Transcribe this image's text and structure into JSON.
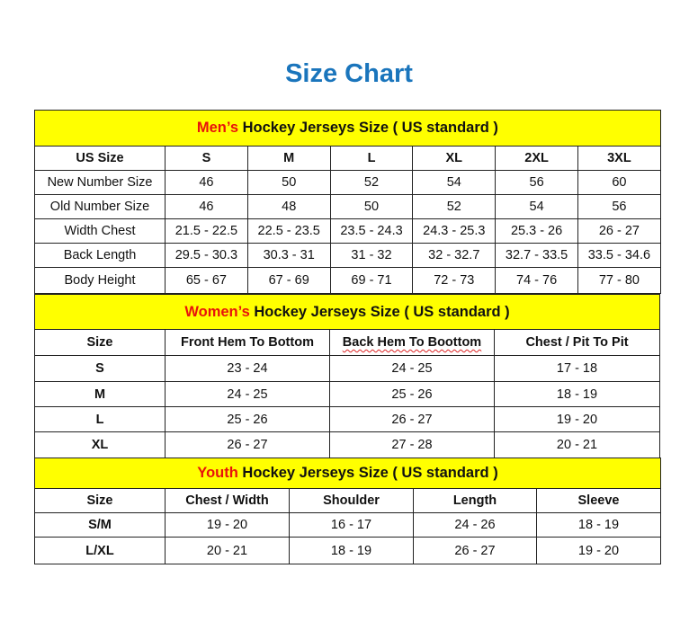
{
  "title": "Size Chart",
  "colors": {
    "title": "#1a75bc",
    "header_bg": "#ffff00",
    "highlight": "#e8120c"
  },
  "men": {
    "heading_highlight": "Men’s",
    "heading_rest": " Hockey Jerseys Size ( US standard )",
    "columns": [
      "US Size",
      "S",
      "M",
      "L",
      "XL",
      "2XL",
      "3XL"
    ],
    "rows": [
      [
        "New Number Size",
        "46",
        "50",
        "52",
        "54",
        "56",
        "60"
      ],
      [
        "Old Number Size",
        "46",
        "48",
        "50",
        "52",
        "54",
        "56"
      ],
      [
        "Width Chest",
        "21.5 - 22.5",
        "22.5 - 23.5",
        "23.5 - 24.3",
        "24.3 - 25.3",
        "25.3 - 26",
        "26 - 27"
      ],
      [
        "Back Length",
        "29.5 - 30.3",
        "30.3 - 31",
        "31 - 32",
        "32 - 32.7",
        "32.7 - 33.5",
        "33.5 - 34.6"
      ],
      [
        "Body Height",
        "65 - 67",
        "67 - 69",
        "69 - 71",
        "72 - 73",
        "74 - 76",
        "77 - 80"
      ]
    ]
  },
  "women": {
    "heading_highlight": "Women’s",
    "heading_rest": " Hockey Jerseys Size ( US standard )",
    "columns": [
      "Size",
      "Front Hem To Bottom",
      "Back Hem To Boottom",
      "Chest / Pit To Pit"
    ],
    "rows": [
      [
        "S",
        "23 - 24",
        "24 - 25",
        "17 - 18"
      ],
      [
        "M",
        "24 - 25",
        "25 - 26",
        "18 - 19"
      ],
      [
        "L",
        "25 - 26",
        "26 - 27",
        "19 - 20"
      ],
      [
        "XL",
        "26 - 27",
        "27 - 28",
        "20 - 21"
      ]
    ]
  },
  "youth": {
    "heading_highlight": "Youth",
    "heading_rest": " Hockey Jerseys Size ( US standard )",
    "columns": [
      "Size",
      "Chest / Width",
      "Shoulder",
      "Length",
      "Sleeve"
    ],
    "rows": [
      [
        "S/M",
        "19 - 20",
        "16 - 17",
        "24 - 26",
        "18 - 19"
      ],
      [
        "L/XL",
        "20 - 21",
        "18 - 19",
        "26 - 27",
        "19 - 20"
      ]
    ]
  }
}
